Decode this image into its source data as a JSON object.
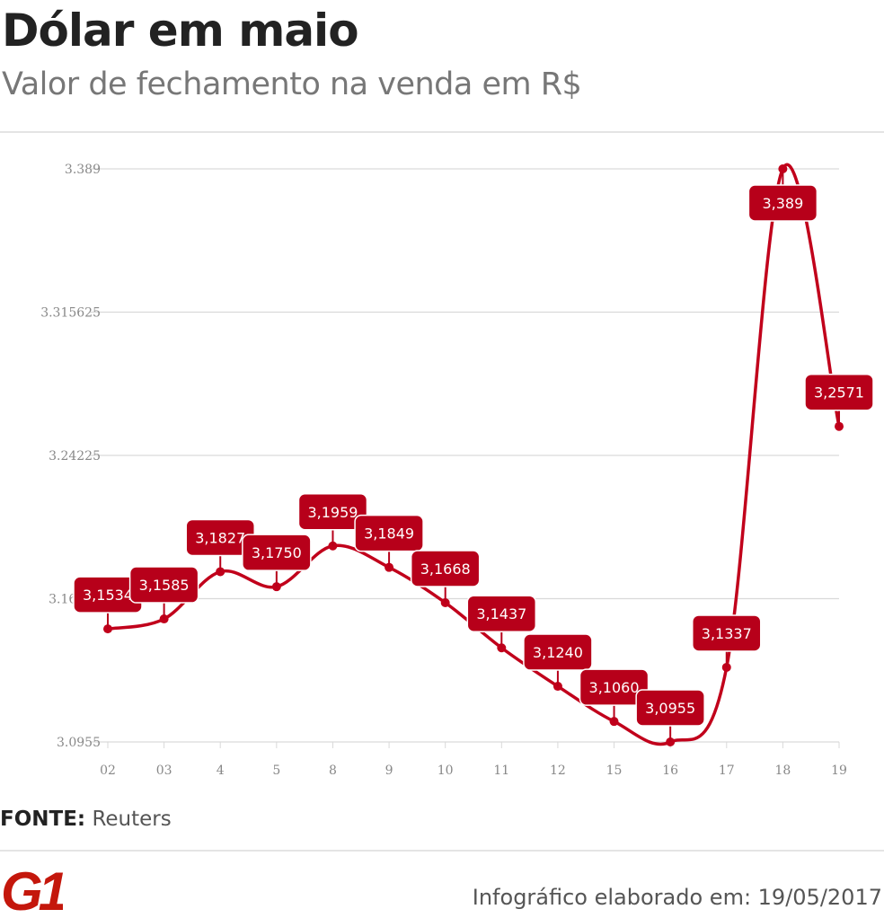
{
  "header": {
    "title": "Dólar em maio",
    "subtitle": "Valor de fechamento na venda em R$"
  },
  "chart_data": {
    "type": "line",
    "categories": [
      "02",
      "03",
      "4",
      "5",
      "8",
      "9",
      "10",
      "11",
      "12",
      "15",
      "16",
      "17",
      "18",
      "19"
    ],
    "values": [
      3.1534,
      3.1585,
      3.1827,
      3.175,
      3.1959,
      3.1849,
      3.1668,
      3.1437,
      3.124,
      3.106,
      3.0955,
      3.1337,
      3.389,
      3.2571
    ],
    "labels": [
      "3,1534",
      "3,1585",
      "3,1827",
      "3,1750",
      "3,1959",
      "3,1849",
      "3,1668",
      "3,1437",
      "3,1240",
      "3,1060",
      "3,0955",
      "3,1337",
      "3,389",
      "3,2571"
    ],
    "yticks": [
      "3.389",
      "3.315625",
      "3.24225",
      "3.16888",
      "3.0955"
    ],
    "ytick_values": [
      3.389,
      3.315625,
      3.24225,
      3.168875,
      3.0955
    ],
    "ylim": [
      3.0955,
      3.389
    ],
    "grid": true,
    "line_color": "#c1001b",
    "label_color": "#b7001a"
  },
  "source": {
    "label": "FONTE:",
    "value": "Reuters"
  },
  "logo": {
    "text": "G1",
    "color": "#c4170c"
  },
  "footer": {
    "credit": "Infográfico elaborado em: 19/05/2017"
  }
}
